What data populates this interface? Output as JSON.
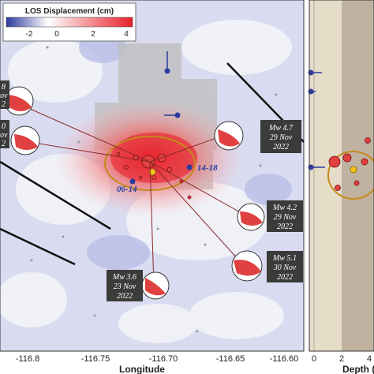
{
  "colorbar": {
    "title": "LOS Displacement (cm)",
    "ticks": [
      "-2",
      "0",
      "2",
      "4"
    ],
    "colors": {
      "negative": "#2c3a9e",
      "zero": "#ffffff",
      "positive": "#e8202a"
    }
  },
  "map": {
    "xlabel": "Longitude",
    "xticks": [
      "-116.8",
      "-116.75",
      "-116.70",
      "-116.65",
      "-116.60"
    ],
    "swarm_labels": [
      "06-14",
      "14-18"
    ],
    "events": [
      {
        "mw": "Mw 4.7",
        "date": "29 Nov",
        "year": "2022"
      },
      {
        "mw": "Mw 4.2",
        "date": "29 Nov",
        "year": "2022"
      },
      {
        "mw": "Mw 5.1",
        "date": "30 Nov",
        "year": "2022"
      },
      {
        "mw": "Mw 3.6",
        "date": "23 Nov",
        "year": "2022"
      }
    ],
    "left_partial_labels": [
      {
        "line1": "8",
        "line2": "ov",
        "line3": "2"
      },
      {
        "line1": "0",
        "line2": "ov",
        "line3": "2"
      }
    ]
  },
  "depth_panel": {
    "xlabel": "Depth (",
    "xticks": [
      "0",
      "2",
      "4"
    ]
  }
}
